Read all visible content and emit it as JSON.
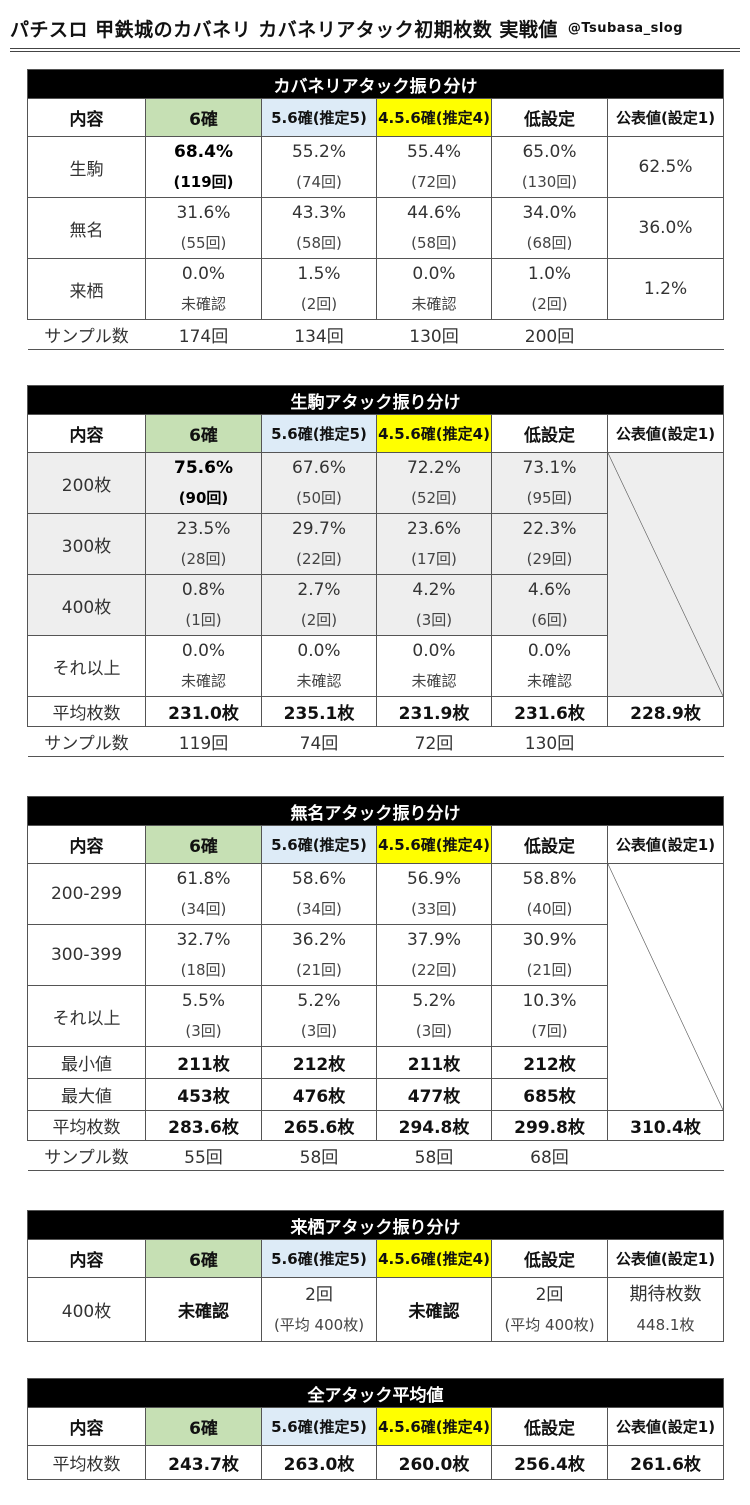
{
  "header": {
    "title": "パチスロ 甲鉄城のカバネリ カバネリアタック初期枚数 実戦値",
    "credit": "@Tsubasa_slog"
  },
  "columns": {
    "content": "内容",
    "s6": "6確",
    "s56": "5.6確(推定5)",
    "s456": "4.5.6確(推定4)",
    "low": "低設定",
    "official": "公表値(設定1)"
  },
  "sec1": {
    "title": "カバネリアタック振り分け",
    "rows": [
      {
        "label": "生駒",
        "s6": [
          "68.4%",
          "(119回)"
        ],
        "s56": [
          "55.2%",
          "(74回)"
        ],
        "s456": [
          "55.4%",
          "(72回)"
        ],
        "low": [
          "65.0%",
          "(130回)"
        ],
        "official": "62.5%"
      },
      {
        "label": "無名",
        "s6": [
          "31.6%",
          "(55回)"
        ],
        "s56": [
          "43.3%",
          "(58回)"
        ],
        "s456": [
          "44.6%",
          "(58回)"
        ],
        "low": [
          "34.0%",
          "(68回)"
        ],
        "official": "36.0%"
      },
      {
        "label": "来栖",
        "s6": [
          "0.0%",
          "未確認"
        ],
        "s56": [
          "1.5%",
          "(2回)"
        ],
        "s456": [
          "0.0%",
          "未確認"
        ],
        "low": [
          "1.0%",
          "(2回)"
        ],
        "official": "1.2%"
      }
    ],
    "sample": {
      "label": "サンプル数",
      "s6": "174回",
      "s56": "134回",
      "s456": "130回",
      "low": "200回"
    }
  },
  "sec2": {
    "title": "生駒アタック振り分け",
    "rows": [
      {
        "label": "200枚",
        "s6": [
          "75.6%",
          "(90回)"
        ],
        "s56": [
          "67.6%",
          "(50回)"
        ],
        "s456": [
          "72.2%",
          "(52回)"
        ],
        "low": [
          "73.1%",
          "(95回)"
        ]
      },
      {
        "label": "300枚",
        "s6": [
          "23.5%",
          "(28回)"
        ],
        "s56": [
          "29.7%",
          "(22回)"
        ],
        "s456": [
          "23.6%",
          "(17回)"
        ],
        "low": [
          "22.3%",
          "(29回)"
        ]
      },
      {
        "label": "400枚",
        "s6": [
          "0.8%",
          "(1回)"
        ],
        "s56": [
          "2.7%",
          "(2回)"
        ],
        "s456": [
          "4.2%",
          "(3回)"
        ],
        "low": [
          "4.6%",
          "(6回)"
        ]
      },
      {
        "label": "それ以上",
        "s6": [
          "0.0%",
          "未確認"
        ],
        "s56": [
          "0.0%",
          "未確認"
        ],
        "s456": [
          "0.0%",
          "未確認"
        ],
        "low": [
          "0.0%",
          "未確認"
        ]
      }
    ],
    "avg": {
      "label": "平均枚数",
      "s6": "231.0枚",
      "s56": "235.1枚",
      "s456": "231.9枚",
      "low": "231.6枚",
      "official": "228.9枚"
    },
    "sample": {
      "label": "サンプル数",
      "s6": "119回",
      "s56": "74回",
      "s456": "72回",
      "low": "130回"
    }
  },
  "sec3": {
    "title": "無名アタック振り分け",
    "rows": [
      {
        "label": "200-299",
        "s6": [
          "61.8%",
          "(34回)"
        ],
        "s56": [
          "58.6%",
          "(34回)"
        ],
        "s456": [
          "56.9%",
          "(33回)"
        ],
        "low": [
          "58.8%",
          "(40回)"
        ]
      },
      {
        "label": "300-399",
        "s6": [
          "32.7%",
          "(18回)"
        ],
        "s56": [
          "36.2%",
          "(21回)"
        ],
        "s456": [
          "37.9%",
          "(22回)"
        ],
        "low": [
          "30.9%",
          "(21回)"
        ]
      },
      {
        "label": "それ以上",
        "s6": [
          "5.5%",
          "(3回)"
        ],
        "s56": [
          "5.2%",
          "(3回)"
        ],
        "s456": [
          "5.2%",
          "(3回)"
        ],
        "low": [
          "10.3%",
          "(7回)"
        ]
      }
    ],
    "min": {
      "label": "最小値",
      "s6": "211枚",
      "s56": "212枚",
      "s456": "211枚",
      "low": "212枚"
    },
    "max": {
      "label": "最大値",
      "s6": "453枚",
      "s56": "476枚",
      "s456": "477枚",
      "low": "685枚"
    },
    "avg": {
      "label": "平均枚数",
      "s6": "283.6枚",
      "s56": "265.6枚",
      "s456": "294.8枚",
      "low": "299.8枚",
      "official": "310.4枚"
    },
    "sample": {
      "label": "サンプル数",
      "s6": "55回",
      "s56": "58回",
      "s456": "58回",
      "low": "68回"
    }
  },
  "sec4": {
    "title": "来栖アタック振り分け",
    "row": {
      "label": "400枚",
      "s6": "未確認",
      "s56": [
        "2回",
        "(平均 400枚)"
      ],
      "s456": "未確認",
      "low": [
        "2回",
        "(平均 400枚)"
      ],
      "official": [
        "期待枚数",
        "448.1枚"
      ]
    }
  },
  "sec5": {
    "title": "全アタック平均値",
    "row": {
      "label": "平均枚数",
      "s6": "243.7枚",
      "s56": "263.0枚",
      "s456": "260.0枚",
      "low": "256.4枚",
      "official": "261.6枚"
    }
  }
}
